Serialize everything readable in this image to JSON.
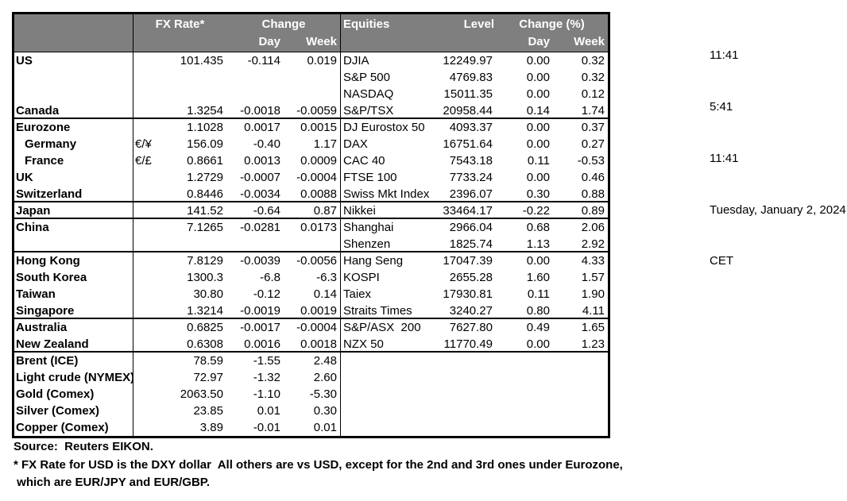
{
  "colors": {
    "header_bg": "#7f7f7f",
    "header_text": "#ffffff",
    "border": "#000000"
  },
  "header": {
    "fx_rate": "FX Rate*",
    "change": "Change",
    "day": "Day",
    "week": "Week",
    "equities": "Equities",
    "level": "Level",
    "change_pct": "Change (%)"
  },
  "rows": [
    {
      "country": "US",
      "symbol": "",
      "fx_rate": "101.435",
      "fx_day": "-0.114",
      "fx_week": "0.019",
      "equity": "DJIA",
      "level": "12249.97",
      "eq_day": "0.00",
      "eq_week": "0.32",
      "indent": false,
      "sep": false
    },
    {
      "country": "",
      "symbol": "",
      "fx_rate": "",
      "fx_day": "",
      "fx_week": "",
      "equity": "S&P 500",
      "level": "4769.83",
      "eq_day": "0.00",
      "eq_week": "0.32",
      "indent": false,
      "sep": false
    },
    {
      "country": "",
      "symbol": "",
      "fx_rate": "",
      "fx_day": "",
      "fx_week": "",
      "equity": "NASDAQ",
      "level": "15011.35",
      "eq_day": "0.00",
      "eq_week": "0.12",
      "indent": false,
      "sep": false
    },
    {
      "country": "Canada",
      "symbol": "",
      "fx_rate": "1.3254",
      "fx_day": "-0.0018",
      "fx_week": "-0.0059",
      "equity": "S&P/TSX",
      "level": "20958.44",
      "eq_day": "0.14",
      "eq_week": "1.74",
      "indent": false,
      "sep": false
    },
    {
      "country": "Eurozone",
      "symbol": "",
      "fx_rate": "1.1028",
      "fx_day": "0.0017",
      "fx_week": "0.0015",
      "equity": "DJ Eurostox 50",
      "level": "4093.37",
      "eq_day": "0.00",
      "eq_week": "0.37",
      "indent": false,
      "sep": true
    },
    {
      "country": "Germany",
      "symbol": "€/¥",
      "fx_rate": "156.09",
      "fx_day": "-0.40",
      "fx_week": "1.17",
      "equity": "DAX",
      "level": "16751.64",
      "eq_day": "0.00",
      "eq_week": "0.27",
      "indent": true,
      "sep": false
    },
    {
      "country": "France",
      "symbol": "€/£",
      "fx_rate": "0.8661",
      "fx_day": "0.0013",
      "fx_week": "0.0009",
      "equity": "CAC 40",
      "level": "7543.18",
      "eq_day": "0.11",
      "eq_week": "-0.53",
      "indent": true,
      "sep": false
    },
    {
      "country": "UK",
      "symbol": "",
      "fx_rate": "1.2729",
      "fx_day": "-0.0007",
      "fx_week": "-0.0004",
      "equity": "FTSE 100",
      "level": "7733.24",
      "eq_day": "0.00",
      "eq_week": "0.46",
      "indent": false,
      "sep": false
    },
    {
      "country": "Switzerland",
      "symbol": "",
      "fx_rate": "0.8446",
      "fx_day": "-0.0034",
      "fx_week": "0.0088",
      "equity": "Swiss Mkt Index",
      "level": "2396.07",
      "eq_day": "0.30",
      "eq_week": "0.88",
      "indent": false,
      "sep": false
    },
    {
      "country": "Japan",
      "symbol": "",
      "fx_rate": "141.52",
      "fx_day": "-0.64",
      "fx_week": "0.87",
      "equity": "Nikkei",
      "level": "33464.17",
      "eq_day": "-0.22",
      "eq_week": "0.89",
      "indent": false,
      "sep": true
    },
    {
      "country": "China",
      "symbol": "",
      "fx_rate": "7.1265",
      "fx_day": "-0.0281",
      "fx_week": "0.0173",
      "equity": "Shanghai",
      "level": "2966.04",
      "eq_day": "0.68",
      "eq_week": "2.06",
      "indent": false,
      "sep": true
    },
    {
      "country": "",
      "symbol": "",
      "fx_rate": "",
      "fx_day": "",
      "fx_week": "",
      "equity": "Shenzen",
      "level": "1825.74",
      "eq_day": "1.13",
      "eq_week": "2.92",
      "indent": false,
      "sep": false
    },
    {
      "country": "Hong Kong",
      "symbol": "",
      "fx_rate": "7.8129",
      "fx_day": "-0.0039",
      "fx_week": "-0.0056",
      "equity": "Hang Seng",
      "level": "17047.39",
      "eq_day": "0.00",
      "eq_week": "4.33",
      "indent": false,
      "sep": true
    },
    {
      "country": "South Korea",
      "symbol": "",
      "fx_rate": "1300.3",
      "fx_day": "-6.8",
      "fx_week": "-6.3",
      "equity": "KOSPI",
      "level": "2655.28",
      "eq_day": "1.60",
      "eq_week": "1.57",
      "indent": false,
      "sep": false
    },
    {
      "country": "Taiwan",
      "symbol": "",
      "fx_rate": "30.80",
      "fx_day": "-0.12",
      "fx_week": "0.14",
      "equity": "Taiex",
      "level": "17930.81",
      "eq_day": "0.11",
      "eq_week": "1.90",
      "indent": false,
      "sep": false
    },
    {
      "country": "Singapore",
      "symbol": "",
      "fx_rate": "1.3214",
      "fx_day": "-0.0019",
      "fx_week": "0.0019",
      "equity": "Straits Times",
      "level": "3240.27",
      "eq_day": "0.80",
      "eq_week": "4.11",
      "indent": false,
      "sep": false
    },
    {
      "country": "Australia",
      "symbol": "",
      "fx_rate": "0.6825",
      "fx_day": "-0.0017",
      "fx_week": "-0.0004",
      "equity": "S&P/ASX  200",
      "level": "7627.80",
      "eq_day": "0.49",
      "eq_week": "1.65",
      "indent": false,
      "sep": true
    },
    {
      "country": "New Zealand",
      "symbol": "",
      "fx_rate": "0.6308",
      "fx_day": "0.0016",
      "fx_week": "0.0018",
      "equity": "NZX 50",
      "level": "11770.49",
      "eq_day": "0.00",
      "eq_week": "1.23",
      "indent": false,
      "sep": false
    },
    {
      "country": "Brent (ICE)",
      "symbol": "",
      "fx_rate": "78.59",
      "fx_day": "-1.55",
      "fx_week": "2.48",
      "equity": "",
      "level": "",
      "eq_day": "",
      "eq_week": "",
      "indent": false,
      "sep": true
    },
    {
      "country": "Light crude (NYMEX)",
      "symbol": "",
      "fx_rate": "72.97",
      "fx_day": "-1.32",
      "fx_week": "2.60",
      "equity": "",
      "level": "",
      "eq_day": "",
      "eq_week": "",
      "indent": false,
      "sep": false
    },
    {
      "country": "Gold (Comex)",
      "symbol": "",
      "fx_rate": "2063.50",
      "fx_day": "-1.10",
      "fx_week": "-5.30",
      "equity": "",
      "level": "",
      "eq_day": "",
      "eq_week": "",
      "indent": false,
      "sep": false
    },
    {
      "country": "Silver (Comex)",
      "symbol": "",
      "fx_rate": "23.85",
      "fx_day": "0.01",
      "fx_week": "0.30",
      "equity": "",
      "level": "",
      "eq_day": "",
      "eq_week": "",
      "indent": false,
      "sep": false
    },
    {
      "country": "Copper (Comex)",
      "symbol": "",
      "fx_rate": "3.89",
      "fx_day": "-0.01",
      "fx_week": "0.01",
      "equity": "",
      "level": "",
      "eq_day": "",
      "eq_week": "",
      "indent": false,
      "sep": false
    }
  ],
  "times": {
    "lines": [
      "11:41",
      "5:41",
      "11:41",
      "Tuesday, January 2, 2024",
      "CET"
    ]
  },
  "footer": {
    "source": "Source:  Reuters EIKON.",
    "note1": "* FX Rate for USD is the DXY dollar  All others are vs USD, except for the 2nd and 3rd ones under Eurozone,",
    "note2": " which are EUR/JPY and EUR/GBP."
  }
}
